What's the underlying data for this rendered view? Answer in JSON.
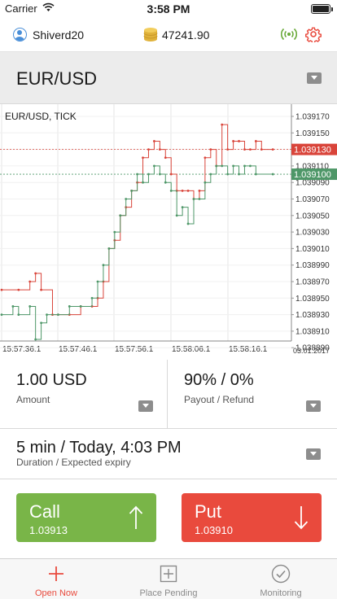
{
  "status_bar": {
    "carrier": "Carrier",
    "time": "3:58 PM"
  },
  "account": {
    "username": "Shiverd20",
    "balance": "47241.90"
  },
  "instrument": {
    "name": "EUR/USD"
  },
  "chart_data": {
    "type": "line",
    "title": "EUR/USD, TICK",
    "date_label": "03.01.2017",
    "x_tick_labels": [
      "15:57:36.1",
      "15:57:46.1",
      "15:57:56.1",
      "15:58:06.1",
      "15:58:16.1"
    ],
    "y_tick_labels": [
      "1.039170",
      "1.039150",
      "1.039130",
      "1.039110",
      "1.039090",
      "1.039070",
      "1.039050",
      "1.039030",
      "1.039010",
      "1.038990",
      "1.038970",
      "1.038950",
      "1.038930",
      "1.038910",
      "1.038890"
    ],
    "ylim": [
      1.03888,
      1.03918
    ],
    "x_range_seconds": [
      0,
      51
    ],
    "grid": true,
    "series": [
      {
        "color": "#d9443a",
        "values": [
          [
            0,
            1.03896
          ],
          [
            3,
            1.03896
          ],
          [
            5,
            1.03897
          ],
          [
            6,
            1.03898
          ],
          [
            7,
            1.03896
          ],
          [
            9,
            1.03893
          ],
          [
            10,
            1.03893
          ],
          [
            12,
            1.03893
          ],
          [
            14,
            1.03894
          ],
          [
            16,
            1.03894
          ],
          [
            17,
            1.03895
          ],
          [
            18,
            1.03897
          ],
          [
            19,
            1.03901
          ],
          [
            20,
            1.03902
          ],
          [
            21,
            1.03905
          ],
          [
            22,
            1.03906
          ],
          [
            23,
            1.03908
          ],
          [
            24,
            1.03909
          ],
          [
            25,
            1.03912
          ],
          [
            26,
            1.03913
          ],
          [
            27,
            1.03914
          ],
          [
            28,
            1.03913
          ],
          [
            29,
            1.03912
          ],
          [
            30,
            1.0391
          ],
          [
            31,
            1.03908
          ],
          [
            32,
            1.03908
          ],
          [
            33,
            1.03908
          ],
          [
            34,
            1.03907
          ],
          [
            35,
            1.03908
          ],
          [
            36,
            1.03912
          ],
          [
            37,
            1.03913
          ],
          [
            38,
            1.03911
          ],
          [
            39,
            1.03916
          ],
          [
            40,
            1.03913
          ],
          [
            41,
            1.03914
          ],
          [
            42,
            1.03914
          ],
          [
            43,
            1.03913
          ],
          [
            44,
            1.03913
          ],
          [
            45,
            1.03914
          ],
          [
            46,
            1.03913
          ],
          [
            48,
            1.03913
          ]
        ]
      },
      {
        "color": "#4e9768",
        "values": [
          [
            0,
            1.03893
          ],
          [
            2,
            1.03894
          ],
          [
            3,
            1.03893
          ],
          [
            5,
            1.03894
          ],
          [
            6,
            1.0389
          ],
          [
            7,
            1.03892
          ],
          [
            8,
            1.03893
          ],
          [
            10,
            1.03893
          ],
          [
            12,
            1.03894
          ],
          [
            14,
            1.03894
          ],
          [
            16,
            1.03895
          ],
          [
            17,
            1.03897
          ],
          [
            18,
            1.03899
          ],
          [
            19,
            1.03901
          ],
          [
            20,
            1.03903
          ],
          [
            21,
            1.03905
          ],
          [
            22,
            1.03907
          ],
          [
            23,
            1.03908
          ],
          [
            24,
            1.0391
          ],
          [
            25,
            1.03909
          ],
          [
            26,
            1.0391
          ],
          [
            27,
            1.03911
          ],
          [
            28,
            1.0391
          ],
          [
            29,
            1.03909
          ],
          [
            30,
            1.03908
          ],
          [
            31,
            1.03905
          ],
          [
            32,
            1.03906
          ],
          [
            33,
            1.03904
          ],
          [
            34,
            1.03907
          ],
          [
            35,
            1.03907
          ],
          [
            36,
            1.03909
          ],
          [
            37,
            1.0391
          ],
          [
            38,
            1.03911
          ],
          [
            39,
            1.03911
          ],
          [
            40,
            1.0391
          ],
          [
            41,
            1.03911
          ],
          [
            42,
            1.0391
          ],
          [
            43,
            1.03911
          ],
          [
            44,
            1.03911
          ],
          [
            45,
            1.0391
          ],
          [
            48,
            1.0391
          ]
        ]
      }
    ],
    "price_markers": [
      {
        "value": 1.03913,
        "label": "1.039130",
        "color": "#d9443a"
      },
      {
        "value": 1.0391,
        "label": "1.039100",
        "color": "#4e9768"
      }
    ]
  },
  "option": {
    "amount": {
      "value": "1.00 USD",
      "label": "Amount"
    },
    "payout": {
      "value": "90% / 0%",
      "label": "Payout / Refund"
    },
    "duration": {
      "value": "5 min / Today, 4:03 PM",
      "label": "Duration / Expected expiry"
    }
  },
  "buttons": {
    "call": {
      "label": "Call",
      "price": "1.03913",
      "color": "#79b548"
    },
    "put": {
      "label": "Put",
      "price": "1.03910",
      "color": "#e94a3d"
    }
  },
  "tabs": [
    {
      "label": "Open Now",
      "icon": "plus-icon",
      "active": true
    },
    {
      "label": "Place Pending",
      "icon": "add-square-icon",
      "active": false
    },
    {
      "label": "Monitoring",
      "icon": "check-circle-icon",
      "active": false
    }
  ]
}
